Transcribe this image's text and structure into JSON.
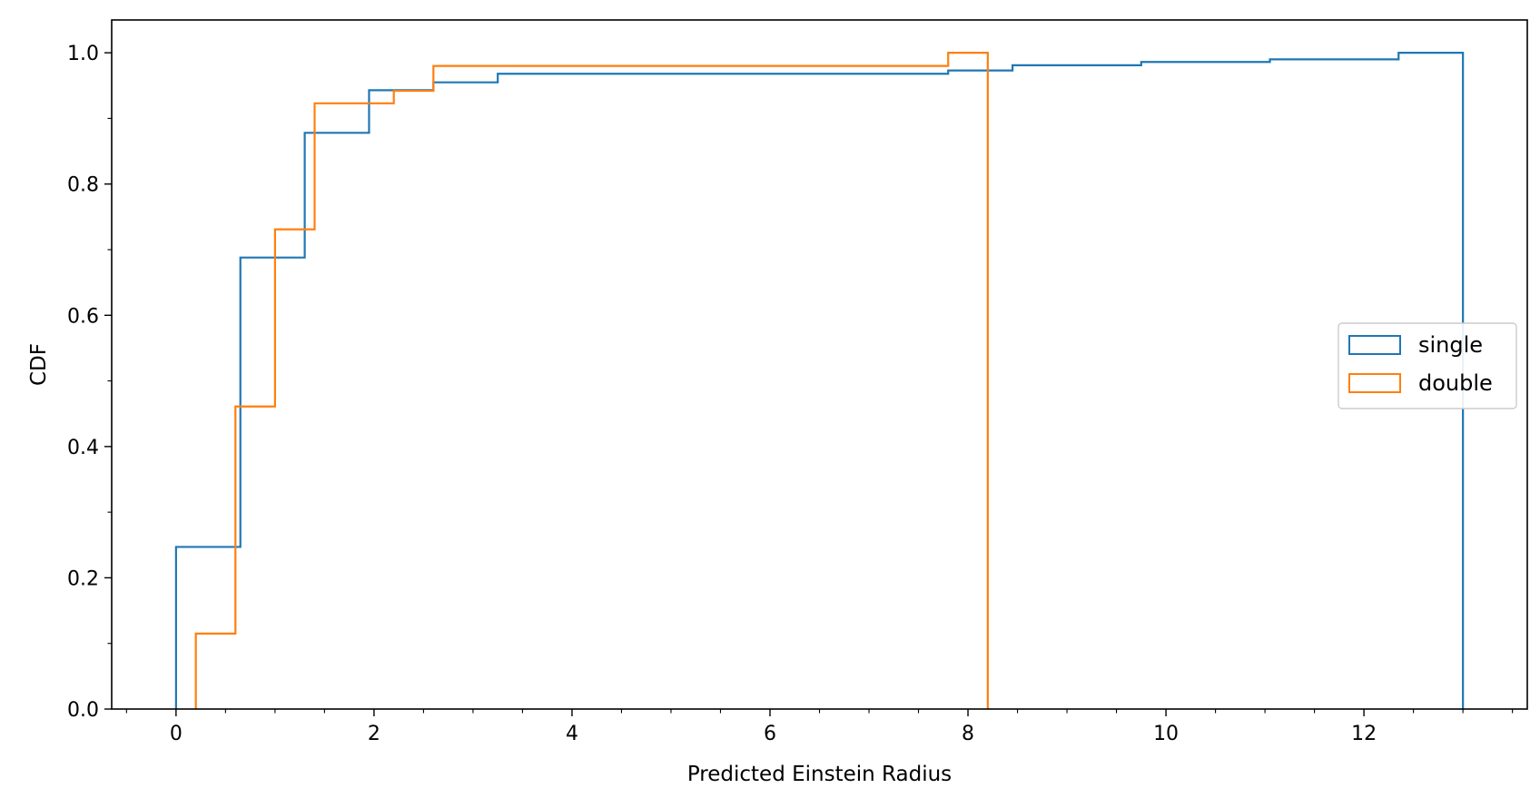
{
  "chart_data": {
    "type": "step",
    "histtype": "cumulative step histogram",
    "xlabel": "Predicted Einstein Radius",
    "ylabel": "CDF",
    "xlim": [
      -0.65,
      13.65
    ],
    "ylim": [
      0,
      1.05
    ],
    "xticks": [
      0,
      2,
      4,
      6,
      8,
      10,
      12
    ],
    "xtick_labels": [
      "0",
      "2",
      "4",
      "6",
      "8",
      "10",
      "12"
    ],
    "x_minor_ticks": [
      -0.5,
      0.5,
      1.0,
      1.5,
      2.5,
      3.0,
      3.5,
      4.5,
      5.0,
      5.5,
      6.5,
      7.0,
      7.5,
      8.5,
      9.0,
      9.5,
      10.5,
      11.0,
      11.5,
      12.5,
      13.0,
      13.5
    ],
    "yticks": [
      0.0,
      0.2,
      0.4,
      0.6,
      0.8,
      1.0
    ],
    "ytick_labels": [
      "0.0",
      "0.2",
      "0.4",
      "0.6",
      "0.8",
      "1.0"
    ],
    "y_minor_ticks": [
      0.1,
      0.3,
      0.5,
      0.7,
      0.9
    ],
    "grid": false,
    "legend_placement": "center-right",
    "series": [
      {
        "name": "single",
        "color": "#1f77b4",
        "bin_edges": [
          0.0,
          0.65,
          1.3,
          1.95,
          2.6,
          3.25,
          3.9,
          4.55,
          5.2,
          5.85,
          6.5,
          7.15,
          7.8,
          8.45,
          9.1,
          9.75,
          10.4,
          11.05,
          11.7,
          12.35,
          13.0
        ],
        "cdf": [
          0.247,
          0.688,
          0.878,
          0.943,
          0.955,
          0.968,
          0.968,
          0.968,
          0.968,
          0.968,
          0.968,
          0.968,
          0.973,
          0.981,
          0.981,
          0.986,
          0.986,
          0.99,
          0.99,
          1.0
        ]
      },
      {
        "name": "double",
        "color": "#ff7f0e",
        "bin_edges": [
          0.2,
          0.6,
          1.0,
          1.4,
          1.8,
          2.2,
          2.6,
          3.0,
          3.4,
          3.8,
          4.2,
          4.6,
          5.0,
          5.4,
          5.8,
          6.2,
          6.6,
          7.0,
          7.4,
          7.8,
          8.2
        ],
        "cdf": [
          0.115,
          0.461,
          0.731,
          0.923,
          0.923,
          0.942,
          0.98,
          0.98,
          0.98,
          0.98,
          0.98,
          0.98,
          0.98,
          0.98,
          0.98,
          0.98,
          0.98,
          0.98,
          0.98,
          1.0
        ]
      }
    ]
  }
}
